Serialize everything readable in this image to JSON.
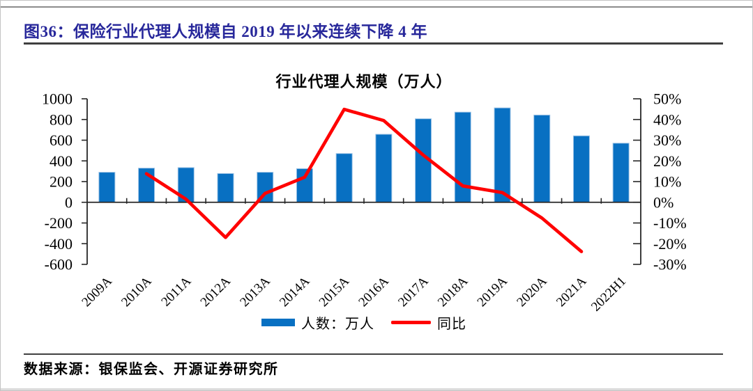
{
  "figure": {
    "title": "图36：保险行业代理人规模自 2019 年以来连续下降 4 年",
    "source_note": "数据来源：银保监会、开源证券研究所"
  },
  "chart_data": {
    "type": "combo-bar-line",
    "title": "行业代理人规模（万人）",
    "categories": [
      "2009A",
      "2010A",
      "2011A",
      "2012A",
      "2013A",
      "2014A",
      "2015A",
      "2016A",
      "2017A",
      "2018A",
      "2019A",
      "2020A",
      "2021A",
      "2022H1"
    ],
    "series": [
      {
        "name": "人数：万人",
        "type": "bar",
        "axis": "left",
        "values": [
          290,
          330,
          335,
          278,
          290,
          325,
          471,
          657,
          807,
          871,
          912,
          843,
          642,
          571
        ]
      },
      {
        "name": "同比",
        "type": "line",
        "axis": "right",
        "values_pct": [
          null,
          13.8,
          1.5,
          -17.0,
          4.3,
          12.1,
          44.9,
          39.5,
          22.8,
          7.9,
          4.7,
          -7.6,
          -23.8,
          null
        ]
      }
    ],
    "left_axis": {
      "min": -600,
      "max": 1000,
      "step": 200,
      "labels": [
        "1000",
        "800",
        "600",
        "400",
        "200",
        "0",
        "-200",
        "-400",
        "-600"
      ]
    },
    "right_axis": {
      "min": -30,
      "max": 50,
      "step": 10,
      "labels": [
        "50%",
        "40%",
        "30%",
        "20%",
        "10%",
        "0%",
        "-10%",
        "-20%",
        "-30%"
      ]
    },
    "legend": [
      {
        "label": "人数：万人",
        "marker": "bar"
      },
      {
        "label": "同比",
        "marker": "line"
      }
    ],
    "layout": {
      "grid": false,
      "legend_position": "bottom-center",
      "x_label_rotation": -45
    },
    "colors": {
      "bar": "#0870C2",
      "bar_edge": "#9DC3E6",
      "line": "#FF0000",
      "title_navy": "#28289B",
      "axis": "#262626"
    }
  }
}
